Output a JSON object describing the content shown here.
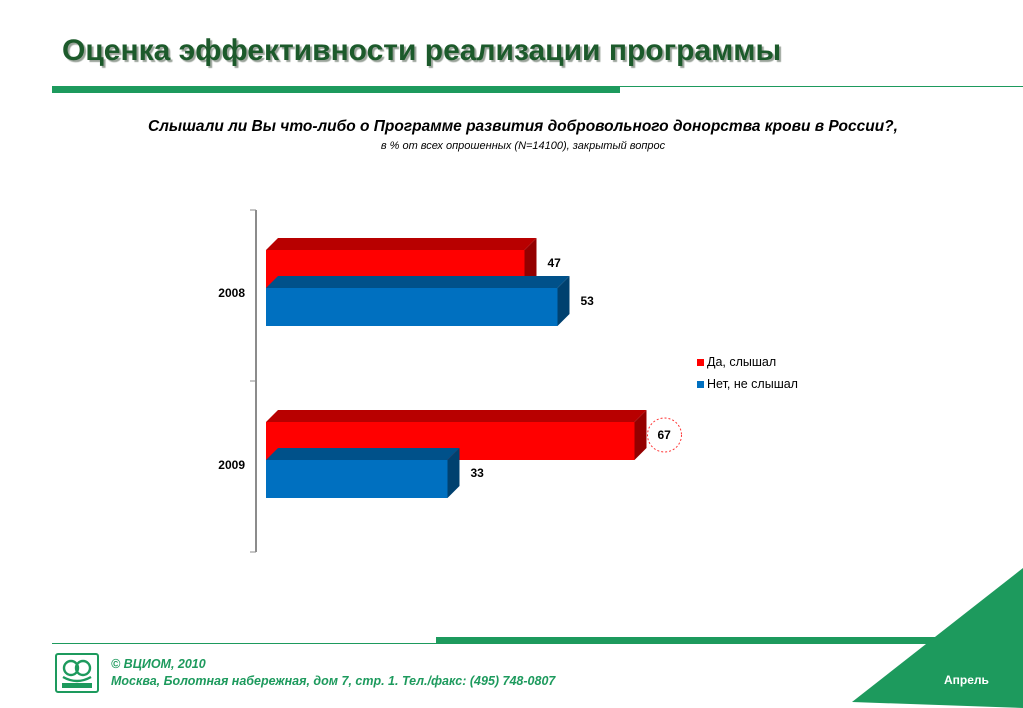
{
  "header": {
    "title": "Оценка эффективности реализации программы",
    "question": "Слышали ли Вы что-либо о Программе развития добровольного донорства крови в России?,",
    "subtitle": "в % от всех опрошенных (N=14100), закрытый вопрос"
  },
  "chart_data": {
    "type": "bar",
    "orientation": "horizontal",
    "categories": [
      "2008",
      "2009"
    ],
    "series": [
      {
        "name": "Да, слышал",
        "values": [
          47,
          67
        ],
        "color": "#ff0000"
      },
      {
        "name": "Нет, не слышал",
        "values": [
          53,
          33
        ],
        "color": "#0070c0"
      }
    ],
    "xlim": [
      0,
      100
    ],
    "legend_position": "right",
    "grid": false,
    "highlighted": {
      "category": "2009",
      "series": "Да, слышал",
      "value": 67
    }
  },
  "footer": {
    "copyright": "© ВЦИОМ, 2010",
    "address": "Москва, Болотная набережная, дом 7, стр. 1.  Тел./факс: (495) 748-0807",
    "month": "Апрель",
    "accent_color": "#1d9a5d"
  }
}
